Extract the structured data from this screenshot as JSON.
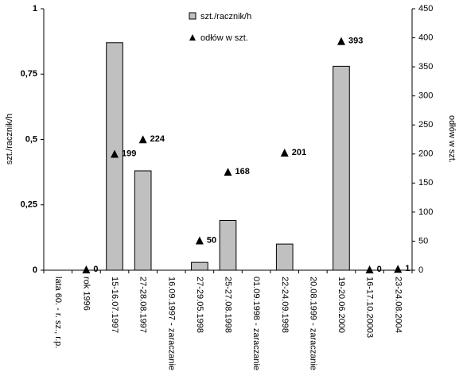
{
  "chart_data": {
    "type": "bar_scatter",
    "categories": [
      "lata 60. - r. sz., r.p.",
      "rok 1996",
      "15-16.07.1997",
      "27-28.08.1997",
      "16.09.1997 - zaraczanie",
      "27-29.05.1998",
      "25-27.08.1998",
      "01.09.1998 - zaraczanie",
      "22-24.09.1998",
      "20.08.1999 - zaraczanie",
      "19-20.06.2000",
      "16-17.10.20003",
      "23-24.08.2004"
    ],
    "series": [
      {
        "name": "szt./racznik/h",
        "color": "#c0c0c0",
        "values": [
          null,
          null,
          0.87,
          0.38,
          null,
          0.03,
          0.19,
          null,
          0.1,
          null,
          0.78,
          null,
          null
        ]
      },
      {
        "name": "odłów w szt.",
        "color": "#000000",
        "axis": "y2",
        "values": [
          null,
          0,
          199,
          224,
          null,
          50,
          168,
          null,
          201,
          null,
          393,
          0,
          1
        ]
      }
    ],
    "ylabel": "szt./racznik/h",
    "y2label": "odłów w szt.",
    "ylim": [
      0,
      1
    ],
    "yticks": [
      0,
      {
        "value": 0.25,
        "label": "0,25"
      },
      {
        "value": 0.5,
        "label": "0,5"
      },
      {
        "value": 0.75,
        "label": "0,75"
      },
      1
    ],
    "y2lim": [
      0,
      450
    ],
    "y2ticks": [
      0,
      50,
      100,
      150,
      200,
      250,
      300,
      350,
      400,
      450
    ]
  }
}
